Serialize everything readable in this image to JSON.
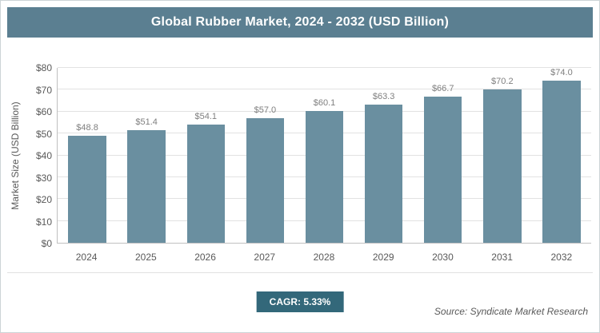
{
  "title": "Global Rubber Market, 2024 - 2032 (USD Billion)",
  "chart_data": {
    "type": "bar",
    "title": "Global Rubber Market, 2024 - 2032 (USD Billion)",
    "categories": [
      "2024",
      "2025",
      "2026",
      "2027",
      "2028",
      "2029",
      "2030",
      "2031",
      "2032"
    ],
    "values": [
      48.8,
      51.4,
      54.1,
      57.0,
      60.1,
      63.3,
      66.7,
      70.2,
      74.0
    ],
    "value_labels": [
      "$48.8",
      "$51.4",
      "$54.1",
      "$57.0",
      "$60.1",
      "$63.3",
      "$66.7",
      "$70.2",
      "$74.0"
    ],
    "xlabel": "",
    "ylabel": "Market Size (USD Billion)",
    "ylim": [
      0,
      80
    ],
    "yticks": [
      0,
      10,
      20,
      30,
      40,
      50,
      60,
      70,
      80
    ],
    "ytick_labels": [
      "$0",
      "$10",
      "$20",
      "$30",
      "$40",
      "$50",
      "$60",
      "$70",
      "$80"
    ],
    "grid": "horizontal",
    "legend": "none"
  },
  "footer": {
    "cagr_label": "CAGR: 5.33%",
    "source": "Source: Syndicate Market Research"
  },
  "colors": {
    "title_bg": "#5b7f91",
    "bar": "#6a8fa0",
    "badge_bg": "#33687a",
    "gridline": "#e2e2e2",
    "axis_text": "#595959",
    "value_label": "#7f7f7f"
  }
}
